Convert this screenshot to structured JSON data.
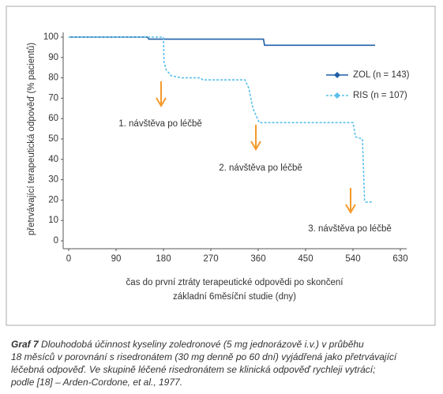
{
  "chart_data": {
    "type": "line",
    "x_label": "čas do první ztráty terapeutické odpovědi po skončení",
    "x_label_2": "základní 6měsíční studie (dny)",
    "y_label": "přetrvávající terapeutická odpověď (% pacientů)",
    "xlim": [
      0,
      630
    ],
    "xticks": [
      0,
      90,
      180,
      270,
      360,
      450,
      540,
      630
    ],
    "ylim": [
      0,
      100
    ],
    "yticks": [
      0,
      10,
      20,
      30,
      40,
      50,
      60,
      70,
      80,
      90,
      100
    ],
    "grid": false,
    "series": [
      {
        "name": "ZOL (n = 143)",
        "color": "#1f5fa8",
        "dashed": false,
        "x": [
          0,
          150,
          152,
          370,
          372,
          582
        ],
        "values": [
          100,
          100,
          99,
          99,
          96,
          96
        ]
      },
      {
        "name": "RIS (n = 107)",
        "color": "#5bc0eb",
        "dashed": true,
        "x": [
          0,
          180,
          181,
          185,
          195,
          215,
          250,
          255,
          335,
          342,
          350,
          362,
          372,
          540,
          545,
          558,
          562,
          564,
          577
        ],
        "values": [
          100,
          100,
          88,
          84,
          81,
          80,
          80,
          79,
          79,
          75,
          65,
          58,
          58,
          58,
          51,
          50,
          20,
          19,
          19
        ]
      }
    ],
    "annotations": [
      "1. návštěva po léčbě",
      "2. návštěva po léčbě",
      "3. návštěva po léčbě"
    ]
  },
  "caption": {
    "label": "Graf 7",
    "lines": [
      "Dlouhodobá účinnost kyseliny zoledronové (5 mg jednorázově i.v.) v průběhu",
      "18 měsíců v porovnání s risedronátem (30 mg denně po 60 dní) vyjádřená jako přetrvávající",
      "léčebná odpověď. Ve skupině léčené risedronátem se klinická odpověď rychleji vytrácí;",
      "podle [18] – Arden-Cordone,  et al., 1977."
    ]
  }
}
